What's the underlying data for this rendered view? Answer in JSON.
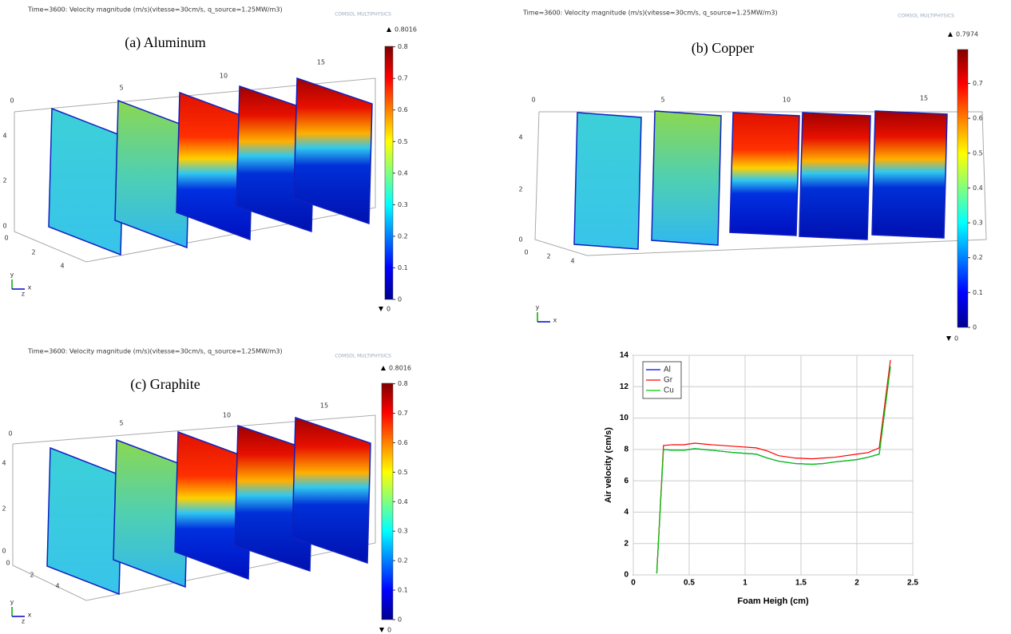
{
  "panels": [
    {
      "header": "Time=3600: Velocity magnitude (m/s)(vitesse=30cm/s, q_source=1.25MW/m3)",
      "logo": "COMSOL MULTIPHYSICS",
      "label": "(a) Aluminum",
      "colorbar_max": 0.8016,
      "colorbar_min": 0,
      "colorbar_ticks": [
        0,
        0.1,
        0.2,
        0.3,
        0.4,
        0.5,
        0.6,
        0.7,
        0.8
      ],
      "x_ticks": [
        0,
        5,
        10,
        15
      ],
      "y_ticks": [
        0,
        2,
        4
      ],
      "z_ticks": [
        0,
        2,
        4
      ],
      "axis_names": [
        "y",
        "x",
        "z"
      ]
    },
    {
      "header": "Time=3600: Velocity magnitude (m/s)(vitesse=30cm/s, q_source=1.25MW/m3)",
      "logo": "COMSOL MULTIPHYSICS",
      "label": "(b) Copper",
      "colorbar_max": 0.7974,
      "colorbar_min": 0,
      "colorbar_ticks": [
        0,
        0.1,
        0.2,
        0.3,
        0.4,
        0.5,
        0.6,
        0.7
      ],
      "x_ticks": [
        0,
        5,
        10,
        15
      ],
      "y_ticks": [
        0,
        2,
        4
      ],
      "z_ticks": [
        0,
        2,
        4
      ],
      "axis_names": [
        "y",
        "x"
      ]
    },
    {
      "header": "Time=3600: Velocity magnitude (m/s)(vitesse=30cm/s, q_source=1.25MW/m3)",
      "logo": "COMSOL MULTIPHYSICS",
      "label": "(c) Graphite",
      "colorbar_max": 0.8016,
      "colorbar_min": 0,
      "colorbar_ticks": [
        0,
        0.1,
        0.2,
        0.3,
        0.4,
        0.5,
        0.6,
        0.7,
        0.8
      ],
      "x_ticks": [
        0,
        5,
        10,
        15
      ],
      "y_ticks": [
        0,
        2,
        4
      ],
      "z_ticks": [
        0,
        2,
        4
      ],
      "axis_names": [
        "y",
        "x",
        "z"
      ]
    }
  ],
  "chart_data": {
    "type": "line",
    "x_label": "Foam Heigh (cm)",
    "y_label": "Air velocity (cm/s)",
    "x": [
      0.21,
      0.27,
      0.35,
      0.45,
      0.55,
      0.7,
      0.9,
      1.1,
      1.2,
      1.3,
      1.45,
      1.6,
      1.7,
      1.8,
      2.0,
      2.1,
      2.2,
      2.3
    ],
    "series": [
      {
        "name": "Al",
        "color": "#0000ff",
        "values": [
          0.1,
          8.0,
          7.95,
          7.95,
          8.05,
          7.95,
          7.8,
          7.7,
          7.45,
          7.25,
          7.1,
          7.05,
          7.1,
          7.2,
          7.35,
          7.5,
          7.7,
          13.3
        ]
      },
      {
        "name": "Gr",
        "color": "#ff0000",
        "values": [
          0.1,
          8.25,
          8.3,
          8.3,
          8.4,
          8.3,
          8.2,
          8.1,
          7.9,
          7.6,
          7.45,
          7.4,
          7.45,
          7.5,
          7.7,
          7.8,
          8.1,
          13.7
        ]
      },
      {
        "name": "Cu",
        "color": "#00cc00",
        "values": [
          0.1,
          8.0,
          7.95,
          7.95,
          8.05,
          7.95,
          7.8,
          7.7,
          7.45,
          7.25,
          7.1,
          7.05,
          7.1,
          7.2,
          7.35,
          7.5,
          7.7,
          13.3
        ]
      }
    ],
    "xlim": [
      0,
      2.5
    ],
    "xticks": [
      0,
      0.5,
      1,
      1.5,
      2,
      2.5
    ],
    "ylim": [
      0,
      14
    ],
    "yticks": [
      0,
      2,
      4,
      6,
      8,
      10,
      12,
      14
    ],
    "grid": true,
    "legend": "upper left"
  }
}
